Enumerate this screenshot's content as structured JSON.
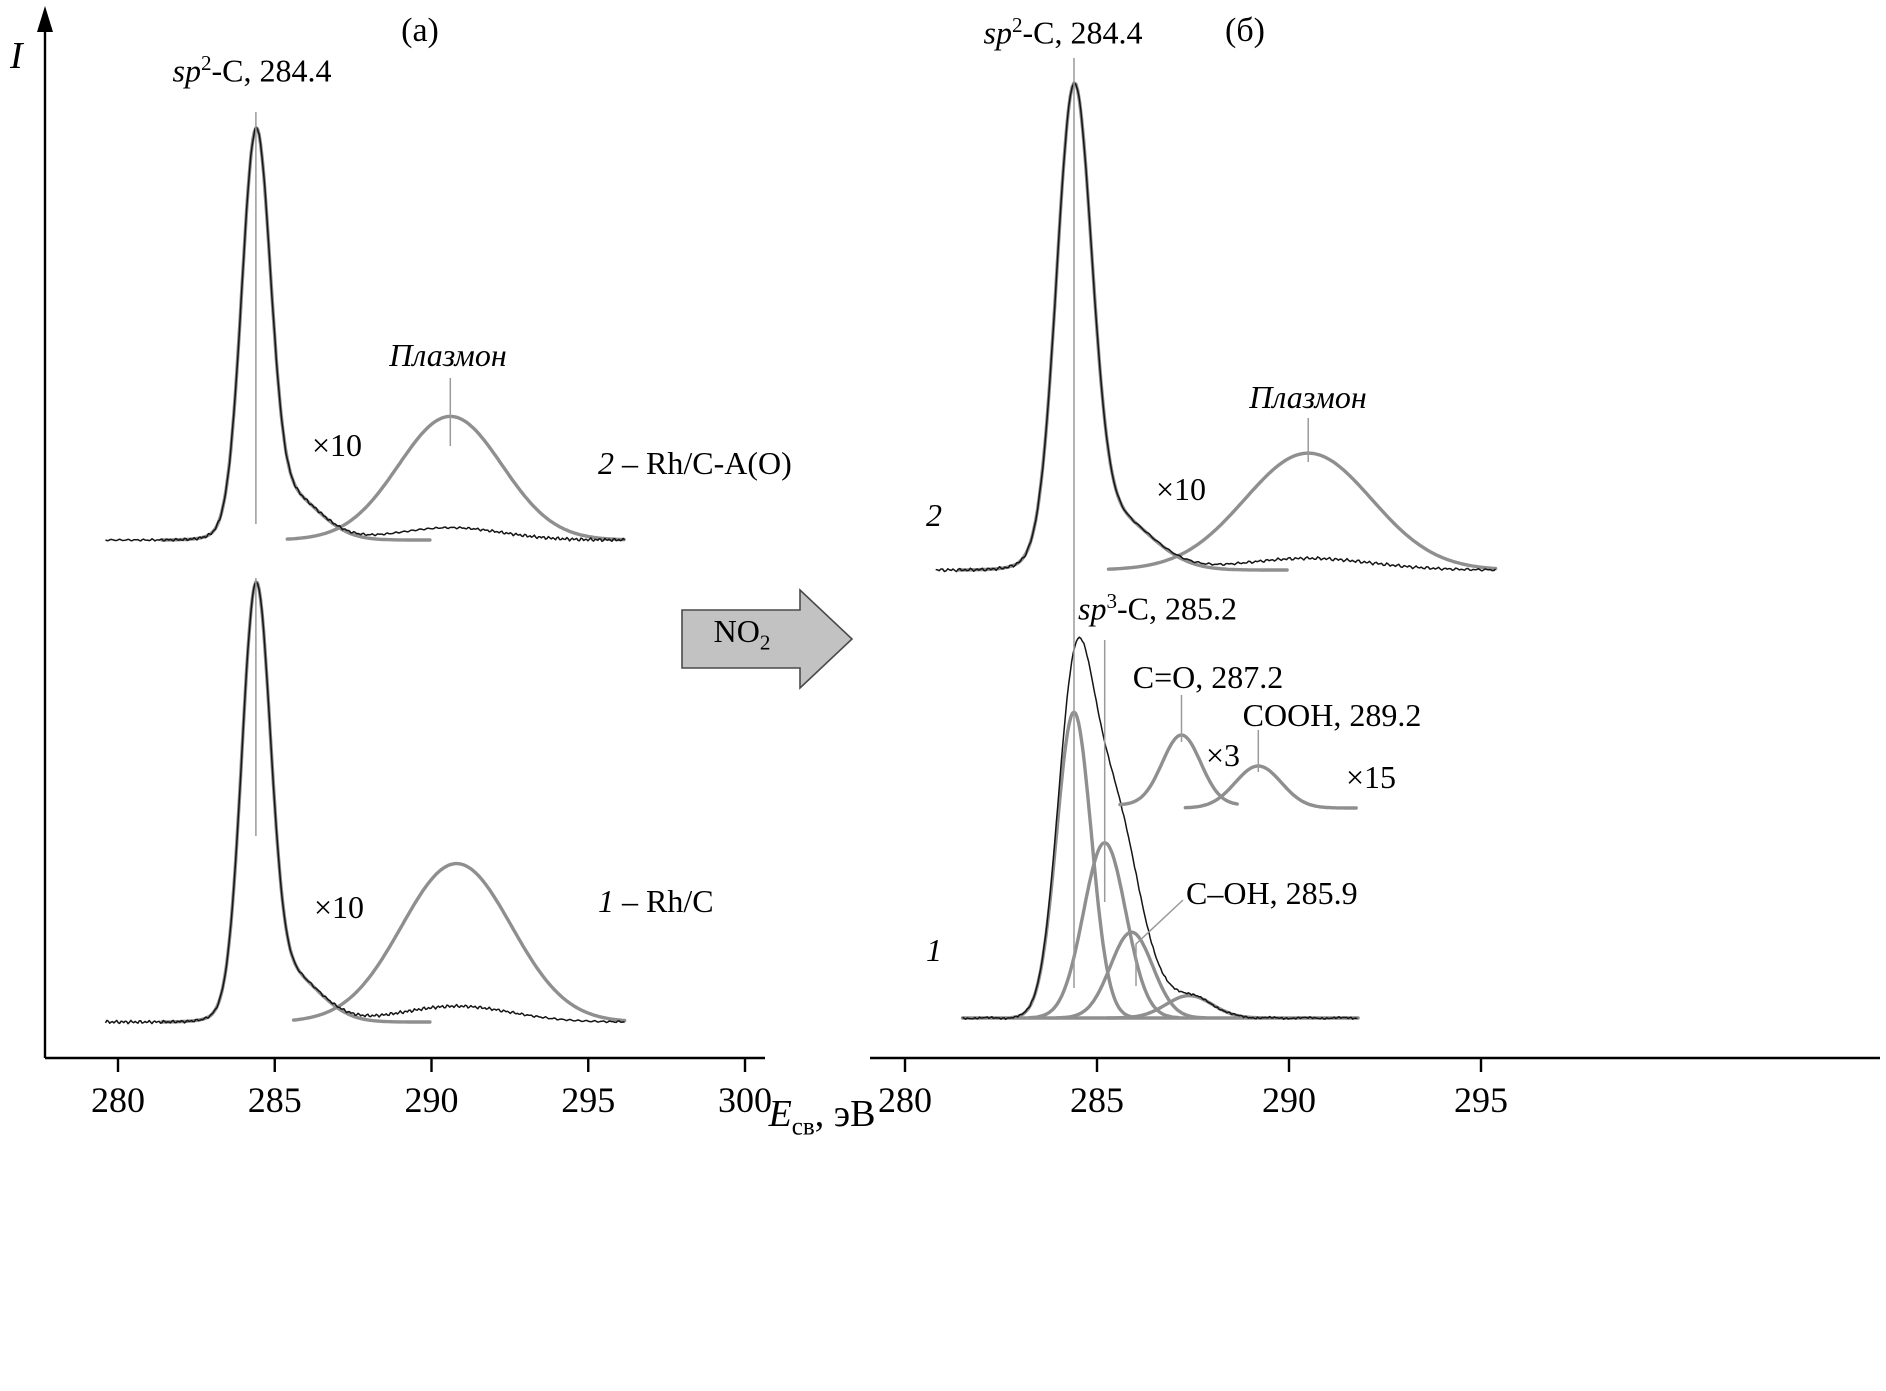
{
  "figure": {
    "ylabel": "I",
    "xlabel_parts": {
      "symbol": "E",
      "subscript": "св",
      "rest": ", эВ"
    },
    "arrow_label": {
      "text": "NO",
      "sub": "2"
    }
  },
  "chart_data": [
    {
      "id": "panel_a",
      "type": "line",
      "panel_label": "(а)",
      "xlabel": "Eсв, эВ",
      "ylabel": "I",
      "xlim": [
        277.5,
        300.5
      ],
      "xticks": [
        280,
        285,
        290,
        295,
        300
      ],
      "grid": false,
      "peak_annotation": {
        "italic": "sp",
        "sup": "2",
        "rest": "-C, 284.4"
      },
      "spectra": [
        {
          "id": "a2",
          "legend": {
            "num": "2",
            "rest": " – Rh/C-A(O)"
          },
          "main_peak": {
            "name": "sp2-C",
            "binding_energy_eV": 284.4,
            "sigma_eV": 0.45,
            "rel_amplitude": 1.0,
            "tail_rel": 0.13,
            "tail_center_eV": 285.3,
            "tail_sigma_eV": 1.05
          },
          "plasmon": {
            "name": "Плазмон",
            "center_eV": 290.6,
            "sigma_eV": 1.65,
            "rel_amplitude": 0.3,
            "magnification": 10,
            "magnification_label": "×10"
          }
        },
        {
          "id": "a1",
          "legend": {
            "num": "1",
            "rest": " – Rh/C"
          },
          "main_peak": {
            "name": "sp2-C",
            "binding_energy_eV": 284.4,
            "sigma_eV": 0.45,
            "rel_amplitude": 1.0,
            "tail_rel": 0.13,
            "tail_center_eV": 285.3,
            "tail_sigma_eV": 1.05
          },
          "plasmon": {
            "center_eV": 290.8,
            "sigma_eV": 1.75,
            "rel_amplitude": 0.36,
            "magnification": 10,
            "magnification_label": "×10"
          }
        }
      ]
    },
    {
      "id": "panel_b",
      "type": "line",
      "panel_label": "(б)",
      "xlabel": "Eсв, эВ",
      "ylabel": "I",
      "xlim": [
        278.5,
        305.5
      ],
      "xticks": [
        280,
        285,
        290,
        295
      ],
      "grid": false,
      "peak_annotation": {
        "italic": "sp",
        "sup": "2",
        "rest": "-C, 284.4"
      },
      "spectra": [
        {
          "id": "b2",
          "legend": {
            "num": "2"
          },
          "main_peak": {
            "name": "sp2-C",
            "binding_energy_eV": 284.4,
            "sigma_eV": 0.45,
            "rel_amplitude": 1.0,
            "tail_rel": 0.13,
            "tail_center_eV": 285.3,
            "tail_sigma_eV": 1.05
          },
          "plasmon": {
            "name": "Плазмон",
            "center_eV": 290.5,
            "sigma_eV": 1.65,
            "rel_amplitude": 0.24,
            "magnification": 10,
            "magnification_label": "×10"
          }
        },
        {
          "id": "b1",
          "legend": {
            "num": "1"
          },
          "components": [
            {
              "name": "sp2-C",
              "binding_energy_eV": 284.4,
              "sigma_eV": 0.45,
              "rel_amplitude": 0.82
            },
            {
              "name": "sp3-C",
              "annotation": {
                "italic": "sp",
                "sup": "3",
                "rest": "-C, 285.2"
              },
              "binding_energy_eV": 285.2,
              "sigma_eV": 0.55,
              "rel_amplitude": 0.47
            },
            {
              "name": "C-OH",
              "annotation_text": "C–OH, 285.9",
              "binding_energy_eV": 285.9,
              "sigma_eV": 0.55,
              "rel_amplitude": 0.23
            },
            {
              "name": "minor-287",
              "binding_energy_eV": 287.4,
              "sigma_eV": 0.6,
              "rel_amplitude": 0.06
            }
          ],
          "magnified_components": [
            {
              "name": "C=O",
              "annotation_text": "C=O, 287.2",
              "binding_energy_eV": 287.2,
              "sigma_eV": 0.5,
              "magnification": 3,
              "magnification_label": "×3"
            },
            {
              "name": "COOH",
              "annotation_text": "COOH, 289.2",
              "binding_energy_eV": 289.2,
              "sigma_eV": 0.6,
              "magnification": 15,
              "magnification_label": "×15"
            }
          ]
        }
      ]
    }
  ]
}
